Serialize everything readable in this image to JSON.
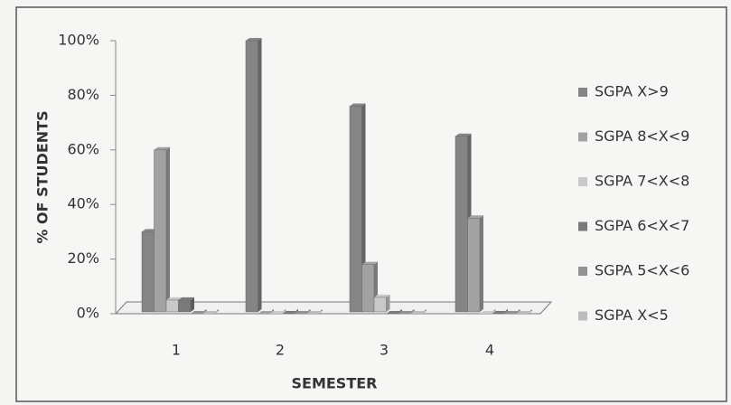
{
  "chart_data": {
    "type": "bar",
    "x_label": "SEMESTER",
    "y_label": "% OF STUDENTS",
    "categories": [
      "1",
      "2",
      "3",
      "4"
    ],
    "series": [
      {
        "name": "SGPA X>9",
        "color": "#858585",
        "values": [
          30,
          100,
          76,
          65
        ]
      },
      {
        "name": "SGPA 8<X<9",
        "color": "#a2a2a2",
        "values": [
          60,
          0,
          18,
          35
        ]
      },
      {
        "name": "SGPA 7<X<8",
        "color": "#c9c9c9",
        "values": [
          5,
          0,
          6,
          0
        ]
      },
      {
        "name": "SGPA 6<X<7",
        "color": "#7a7a7a",
        "values": [
          5,
          0,
          0,
          0
        ]
      },
      {
        "name": "SGPA 5<X<6",
        "color": "#929292",
        "values": [
          0,
          0,
          0,
          0
        ]
      },
      {
        "name": "SGPA X<5",
        "color": "#bdbdbd",
        "values": [
          0,
          0,
          0,
          0
        ]
      }
    ],
    "ylim": [
      0,
      100
    ],
    "yticks": [
      {
        "value": 0,
        "label": "0%"
      },
      {
        "value": 20,
        "label": "20%"
      },
      {
        "value": 40,
        "label": "40%"
      },
      {
        "value": 60,
        "label": "60%"
      },
      {
        "value": 80,
        "label": "80%"
      },
      {
        "value": 100,
        "label": "100%"
      }
    ],
    "legend": "right"
  }
}
